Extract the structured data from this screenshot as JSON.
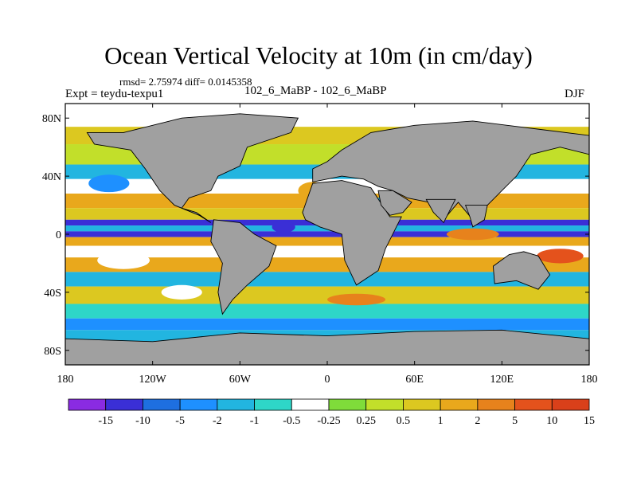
{
  "title": "Ocean Vertical Velocity at 10m (in cm/day)",
  "stats": "rmsd= 2.75974 diff= 0.0145358",
  "experiment_label": "Expt = teydu-texpu1",
  "runs_label": "102_6_MaBP - 102_6_MaBP",
  "season": "DJF",
  "chart_data": {
    "type": "heatmap",
    "title": "Ocean Vertical Velocity at 10m (in cm/day)",
    "xlabel": "",
    "ylabel": "",
    "x_range": [
      -180,
      180
    ],
    "y_range": [
      -90,
      90
    ],
    "x_ticks": [
      "180",
      "120W",
      "60W",
      "0",
      "60E",
      "120E",
      "180"
    ],
    "y_ticks": [
      "80N",
      "40N",
      "0",
      "40S",
      "80S"
    ],
    "land_color": "#a0a0a0",
    "colorbar": {
      "colors": [
        "#8a2be2",
        "#3a2fd6",
        "#1e6fe0",
        "#1e90ff",
        "#22b5e0",
        "#2ed6c8",
        "#ffffff",
        "#7fdc3a",
        "#c2df2a",
        "#dcc820",
        "#e9a81c",
        "#e7821c",
        "#e4521c",
        "#d9401a"
      ],
      "labels": [
        "-15",
        "-10",
        "-5",
        "-2",
        "-1",
        "-0.5",
        "-0.25",
        "0.25",
        "0.5",
        "1",
        "2",
        "5",
        "10",
        "15"
      ]
    }
  }
}
